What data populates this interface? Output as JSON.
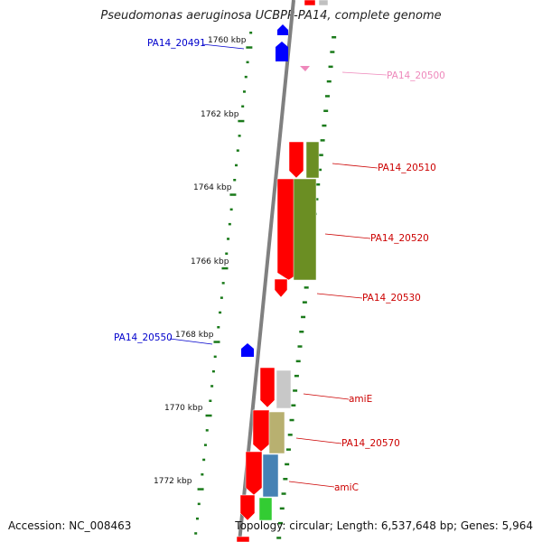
{
  "title": "Pseudomonas aeruginosa UCBPP-PA14, complete genome",
  "footer": {
    "accession_label": "Accession:",
    "accession": "NC_008463",
    "topology_label": "Topology:",
    "topology": "circular;",
    "length_label": "Length:",
    "length": "6,537,648 bp;",
    "genes_label": "Genes:",
    "genes": "5,964"
  },
  "colors": {
    "backbone": "#808080",
    "tick": "#1a7a1a",
    "forward_gene": "#ff0000",
    "reverse_gene": "#0000ff",
    "label_forward": "#cc0000",
    "label_reverse": "#0000cc",
    "label_rna": "#ee88bb"
  },
  "scale_labels": [
    "1760 kbp",
    "1762 kbp",
    "1764 kbp",
    "1766 kbp",
    "1768 kbp",
    "1770 kbp",
    "1772 kbp"
  ],
  "gene_labels": [
    {
      "text": "PA14_20491",
      "strand": "reverse"
    },
    {
      "text": "PA14_20500",
      "strand": "rna"
    },
    {
      "text": "PA14_20510",
      "strand": "forward"
    },
    {
      "text": "PA14_20520",
      "strand": "forward"
    },
    {
      "text": "PA14_20530",
      "strand": "forward"
    },
    {
      "text": "PA14_20550",
      "strand": "reverse"
    },
    {
      "text": "amiE",
      "strand": "forward"
    },
    {
      "text": "PA14_20570",
      "strand": "forward"
    },
    {
      "text": "amiC",
      "strand": "forward"
    }
  ]
}
